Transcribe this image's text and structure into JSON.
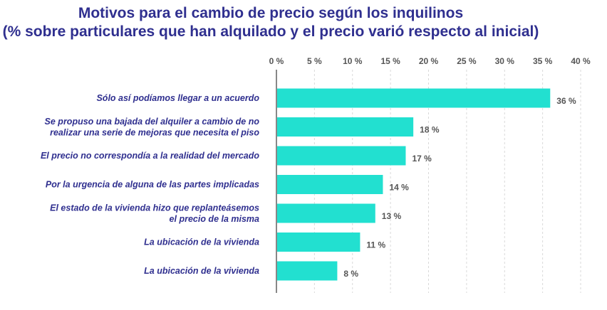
{
  "chart_data": {
    "type": "bar",
    "orientation": "horizontal",
    "title_lines": [
      "Motivos para el cambio de precio según los inquilinos",
      "(% sobre particulares que han alquilado y el precio varió respecto al inicial)"
    ],
    "x_ticks": [
      "0 %",
      "5 %",
      "10 %",
      "15 %",
      "20 %",
      "25 %",
      "30 %",
      "35 %",
      "40 %"
    ],
    "xlim": [
      0,
      40
    ],
    "categories": [
      [
        "Sólo así podíamos llegar a un acuerdo"
      ],
      [
        "Se propuso una bajada del alquiler a cambio de no",
        "realizar una serie de mejoras que necesita el piso"
      ],
      [
        "El precio no correspondía a la realidad del mercado"
      ],
      [
        "Por la urgencia de alguna de las partes implicadas"
      ],
      [
        "El estado de la vivienda hizo que replanteásemos",
        "el precio de la misma"
      ],
      [
        "La ubicación de la vivienda"
      ],
      [
        "La ubicación de la vivienda"
      ]
    ],
    "values": [
      36,
      18,
      17,
      14,
      13,
      11,
      8
    ],
    "value_labels": [
      "36 %",
      "18 %",
      "17 %",
      "14 %",
      "13 %",
      "11 %",
      "8 %"
    ],
    "grid": true,
    "bar_color": "#22e0d0",
    "title_color": "#2f2f8f"
  }
}
